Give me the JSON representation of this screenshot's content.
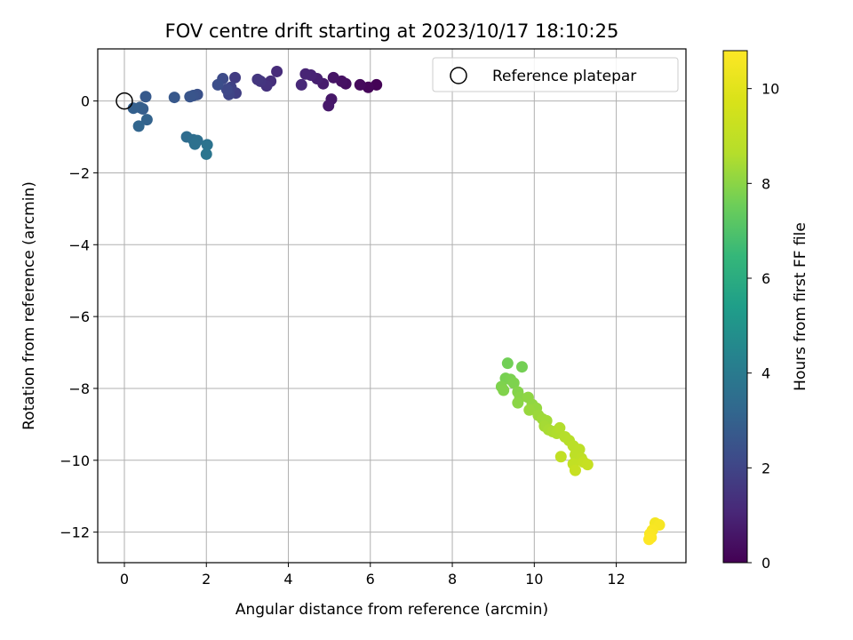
{
  "chart_data": {
    "type": "scatter",
    "title": "FOV centre drift starting at 2023/10/17 18:10:25",
    "xlabel": "Angular distance from reference (arcmin)",
    "ylabel": "Rotation from reference (arcmin)",
    "xlim": [
      -0.65,
      13.7
    ],
    "ylim": [
      -12.85,
      1.45
    ],
    "xticks": [
      0,
      2,
      4,
      6,
      8,
      10,
      12
    ],
    "yticks": [
      0,
      -2,
      -4,
      -6,
      -8,
      -10,
      -12
    ],
    "grid": true,
    "legend": {
      "position": "top-right",
      "entries": [
        {
          "label": "Reference platepar",
          "marker": "open-circle"
        }
      ]
    },
    "reference_point": {
      "x": 0,
      "y": 0
    },
    "colorbar": {
      "label": "Hours from first FF file",
      "colormap": "viridis",
      "range": [
        0,
        10.8
      ],
      "ticks": [
        0,
        2,
        4,
        6,
        8,
        10
      ]
    },
    "points": [
      {
        "x": 6.15,
        "y": 0.45,
        "h": 0.05
      },
      {
        "x": 5.95,
        "y": 0.38,
        "h": 0.15
      },
      {
        "x": 5.75,
        "y": 0.45,
        "h": 0.25
      },
      {
        "x": 5.4,
        "y": 0.48,
        "h": 0.35
      },
      {
        "x": 5.3,
        "y": 0.55,
        "h": 0.45
      },
      {
        "x": 5.1,
        "y": 0.65,
        "h": 0.55
      },
      {
        "x": 5.05,
        "y": 0.05,
        "h": 0.6
      },
      {
        "x": 4.98,
        "y": -0.13,
        "h": 0.65
      },
      {
        "x": 4.85,
        "y": 0.48,
        "h": 0.75
      },
      {
        "x": 4.7,
        "y": 0.62,
        "h": 0.85
      },
      {
        "x": 4.55,
        "y": 0.72,
        "h": 0.95
      },
      {
        "x": 4.42,
        "y": 0.75,
        "h": 1.0
      },
      {
        "x": 4.32,
        "y": 0.45,
        "h": 1.1
      },
      {
        "x": 3.72,
        "y": 0.82,
        "h": 1.2
      },
      {
        "x": 3.57,
        "y": 0.55,
        "h": 1.3
      },
      {
        "x": 3.47,
        "y": 0.42,
        "h": 1.4
      },
      {
        "x": 3.32,
        "y": 0.55,
        "h": 1.5
      },
      {
        "x": 3.25,
        "y": 0.6,
        "h": 1.55
      },
      {
        "x": 2.7,
        "y": 0.65,
        "h": 1.7
      },
      {
        "x": 2.72,
        "y": 0.22,
        "h": 1.8
      },
      {
        "x": 2.6,
        "y": 0.38,
        "h": 1.9
      },
      {
        "x": 2.55,
        "y": 0.18,
        "h": 2.0
      },
      {
        "x": 2.5,
        "y": 0.32,
        "h": 2.1
      },
      {
        "x": 2.4,
        "y": 0.62,
        "h": 2.2
      },
      {
        "x": 2.28,
        "y": 0.45,
        "h": 2.3
      },
      {
        "x": 1.78,
        "y": 0.18,
        "h": 2.4
      },
      {
        "x": 1.68,
        "y": 0.15,
        "h": 2.5
      },
      {
        "x": 1.6,
        "y": 0.12,
        "h": 2.55
      },
      {
        "x": 1.22,
        "y": 0.1,
        "h": 2.65
      },
      {
        "x": 0.52,
        "y": 0.12,
        "h": 2.75
      },
      {
        "x": 0.45,
        "y": -0.22,
        "h": 2.85
      },
      {
        "x": 0.38,
        "y": -0.18,
        "h": 2.9
      },
      {
        "x": 0.22,
        "y": -0.2,
        "h": 2.95
      },
      {
        "x": 0.55,
        "y": -0.52,
        "h": 3.05
      },
      {
        "x": 0.35,
        "y": -0.7,
        "h": 3.15
      },
      {
        "x": 1.52,
        "y": -1.0,
        "h": 3.4
      },
      {
        "x": 1.68,
        "y": -1.08,
        "h": 3.5
      },
      {
        "x": 1.78,
        "y": -1.1,
        "h": 3.55
      },
      {
        "x": 1.72,
        "y": -1.2,
        "h": 3.6
      },
      {
        "x": 2.02,
        "y": -1.22,
        "h": 3.7
      },
      {
        "x": 2.0,
        "y": -1.48,
        "h": 3.8
      },
      {
        "x": 9.35,
        "y": -7.3,
        "h": 7.6
      },
      {
        "x": 9.7,
        "y": -7.4,
        "h": 7.65
      },
      {
        "x": 9.3,
        "y": -7.72,
        "h": 7.7
      },
      {
        "x": 9.42,
        "y": -7.75,
        "h": 7.75
      },
      {
        "x": 9.5,
        "y": -7.85,
        "h": 7.8
      },
      {
        "x": 9.2,
        "y": -7.95,
        "h": 7.8
      },
      {
        "x": 9.25,
        "y": -8.05,
        "h": 7.85
      },
      {
        "x": 9.6,
        "y": -8.1,
        "h": 7.9
      },
      {
        "x": 9.65,
        "y": -8.25,
        "h": 7.95
      },
      {
        "x": 9.6,
        "y": -8.4,
        "h": 8.0
      },
      {
        "x": 9.85,
        "y": -8.25,
        "h": 8.05
      },
      {
        "x": 9.95,
        "y": -8.45,
        "h": 8.1
      },
      {
        "x": 10.05,
        "y": -8.55,
        "h": 8.15
      },
      {
        "x": 9.88,
        "y": -8.6,
        "h": 8.2
      },
      {
        "x": 10.1,
        "y": -8.75,
        "h": 8.25
      },
      {
        "x": 10.2,
        "y": -8.85,
        "h": 8.3
      },
      {
        "x": 10.3,
        "y": -8.9,
        "h": 8.35
      },
      {
        "x": 10.25,
        "y": -9.05,
        "h": 8.4
      },
      {
        "x": 10.35,
        "y": -9.15,
        "h": 8.45
      },
      {
        "x": 10.45,
        "y": -9.2,
        "h": 8.5
      },
      {
        "x": 10.55,
        "y": -9.25,
        "h": 8.55
      },
      {
        "x": 10.62,
        "y": -9.1,
        "h": 8.6
      },
      {
        "x": 10.75,
        "y": -9.35,
        "h": 8.65
      },
      {
        "x": 10.85,
        "y": -9.45,
        "h": 8.7
      },
      {
        "x": 10.95,
        "y": -9.6,
        "h": 8.8
      },
      {
        "x": 11.1,
        "y": -9.7,
        "h": 8.85
      },
      {
        "x": 11.0,
        "y": -9.85,
        "h": 8.9
      },
      {
        "x": 11.15,
        "y": -9.95,
        "h": 8.95
      },
      {
        "x": 10.65,
        "y": -9.9,
        "h": 9.0
      },
      {
        "x": 10.95,
        "y": -10.1,
        "h": 9.05
      },
      {
        "x": 11.2,
        "y": -10.05,
        "h": 9.1
      },
      {
        "x": 11.3,
        "y": -10.12,
        "h": 9.15
      },
      {
        "x": 11.0,
        "y": -10.28,
        "h": 9.2
      },
      {
        "x": 12.95,
        "y": -11.75,
        "h": 10.5
      },
      {
        "x": 13.05,
        "y": -11.8,
        "h": 10.6
      },
      {
        "x": 12.88,
        "y": -11.95,
        "h": 10.65
      },
      {
        "x": 12.82,
        "y": -12.05,
        "h": 10.7
      },
      {
        "x": 12.85,
        "y": -12.15,
        "h": 10.75
      },
      {
        "x": 12.8,
        "y": -12.2,
        "h": 10.8
      }
    ]
  }
}
